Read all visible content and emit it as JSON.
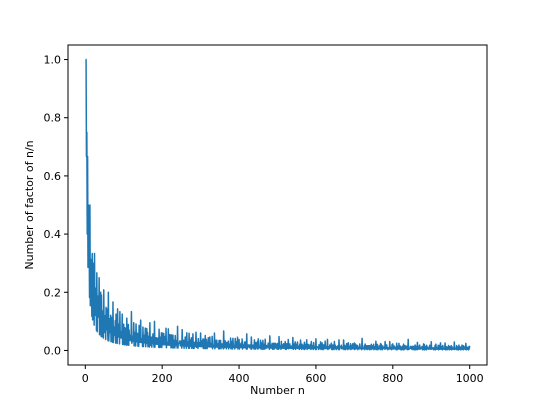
{
  "chart_data": {
    "type": "line",
    "title": "",
    "xlabel": "Number n",
    "ylabel": "Number of factor of n/n",
    "xlim": [
      -45,
      1045
    ],
    "ylim": [
      -0.05,
      1.05
    ],
    "xticks": [
      0,
      200,
      400,
      600,
      800,
      1000
    ],
    "yticks": [
      0.0,
      0.2,
      0.4,
      0.6,
      0.8,
      1.0
    ],
    "xtick_labels": [
      "0",
      "200",
      "400",
      "600",
      "800",
      "1000"
    ],
    "ytick_labels": [
      "0.0",
      "0.2",
      "0.4",
      "0.6",
      "0.8",
      "1.0"
    ],
    "grid": false,
    "series": [
      {
        "color": "#1f77b4",
        "x_range": [
          1,
          1000
        ],
        "y_function": "number of divisors of n divided by n"
      }
    ]
  }
}
